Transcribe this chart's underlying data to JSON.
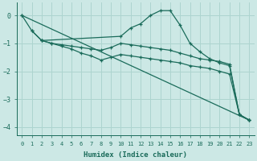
{
  "background_color": "#cce8e5",
  "grid_color": "#add4cf",
  "line_color": "#1a6b5a",
  "xlabel": "Humidex (Indice chaleur)",
  "xlim": [
    -0.5,
    23.5
  ],
  "ylim": [
    -4.3,
    0.45
  ],
  "yticks": [
    0,
    -1,
    -2,
    -3,
    -4
  ],
  "xticks": [
    0,
    1,
    2,
    3,
    4,
    5,
    6,
    7,
    8,
    9,
    10,
    11,
    12,
    13,
    14,
    15,
    16,
    17,
    18,
    19,
    20,
    21,
    22,
    23
  ],
  "lines": [
    {
      "x": [
        0,
        1,
        2,
        10,
        11,
        12,
        13,
        14,
        15,
        16,
        17,
        18,
        19,
        20,
        21,
        22,
        23
      ],
      "y": [
        0.0,
        -0.55,
        -0.9,
        -0.75,
        -0.45,
        -0.3,
        0.0,
        0.17,
        0.17,
        -0.35,
        -1.0,
        -1.3,
        -1.55,
        -1.7,
        -1.8,
        -3.55,
        -3.75
      ]
    },
    {
      "x": [
        1,
        2,
        3,
        4,
        5,
        6,
        7,
        8,
        9,
        10,
        11,
        12,
        13,
        14,
        15,
        16,
        17,
        18,
        19,
        20,
        21,
        22,
        23
      ],
      "y": [
        -0.55,
        -0.9,
        -1.0,
        -1.05,
        -1.1,
        -1.15,
        -1.2,
        -1.25,
        -1.15,
        -1.0,
        -1.05,
        -1.1,
        -1.15,
        -1.2,
        -1.25,
        -1.35,
        -1.45,
        -1.55,
        -1.6,
        -1.65,
        -1.75,
        -3.55,
        -3.75
      ]
    },
    {
      "x": [
        2,
        3,
        4,
        5,
        6,
        7,
        8,
        9,
        10,
        11,
        12,
        13,
        14,
        15,
        16,
        17,
        18,
        19,
        20,
        21,
        22,
        23
      ],
      "y": [
        -0.9,
        -1.0,
        -1.1,
        -1.2,
        -1.35,
        -1.45,
        -1.6,
        -1.5,
        -1.4,
        -1.45,
        -1.5,
        -1.55,
        -1.6,
        -1.65,
        -1.7,
        -1.8,
        -1.85,
        -1.9,
        -2.0,
        -2.1,
        -3.55,
        -3.75
      ]
    },
    {
      "x": [
        0,
        23
      ],
      "y": [
        0.0,
        -3.75
      ]
    }
  ]
}
